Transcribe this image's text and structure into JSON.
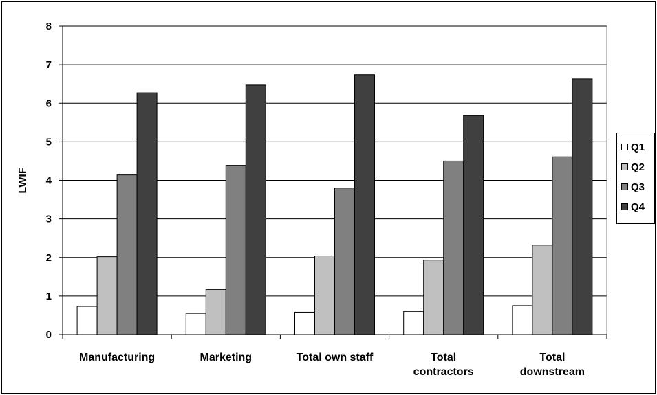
{
  "chart_data": {
    "type": "bar",
    "title": "",
    "xlabel": "",
    "ylabel": "LWIF",
    "ylim": [
      0,
      8
    ],
    "yticks": [
      0,
      1,
      2,
      3,
      4,
      5,
      6,
      7,
      8
    ],
    "grid": true,
    "legend_position": "right",
    "categories": [
      [
        "Manufacturing"
      ],
      [
        "Marketing"
      ],
      [
        "Total own staff"
      ],
      [
        "Total",
        "contractors"
      ],
      [
        "Total",
        "downstream"
      ]
    ],
    "series": [
      {
        "name": "Q1",
        "color": "#ffffff",
        "values": [
          0.73,
          0.55,
          0.58,
          0.6,
          0.75
        ]
      },
      {
        "name": "Q2",
        "color": "#c0c0c0",
        "values": [
          2.02,
          1.17,
          2.04,
          1.93,
          2.32
        ]
      },
      {
        "name": "Q3",
        "color": "#808080",
        "values": [
          4.14,
          4.39,
          3.8,
          4.5,
          4.61
        ]
      },
      {
        "name": "Q4",
        "color": "#404040",
        "values": [
          6.27,
          6.47,
          6.74,
          5.68,
          6.63
        ]
      }
    ]
  }
}
